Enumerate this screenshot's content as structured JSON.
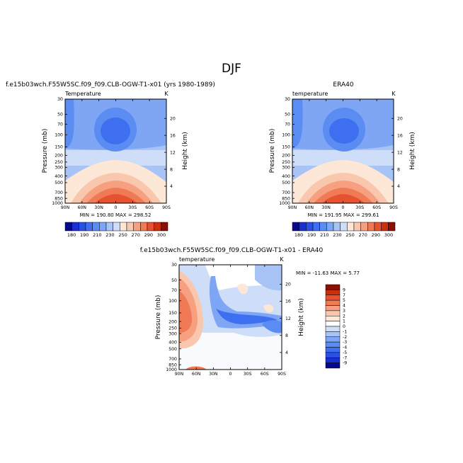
{
  "figure_title": "DJF",
  "chart_data": [
    {
      "type": "heatmap",
      "title": "f.e15b03wch.F55W5SC.f09_f09.CLB-OGW-T1-x01 (yrs 1980-1989)",
      "subtitle": "Temperature",
      "units": "K",
      "ylabel": "Pressure (mb)",
      "ylabel_right": "Height (km)",
      "x_ticks": [
        "90N",
        "60N",
        "30N",
        "0",
        "30S",
        "60S",
        "90S"
      ],
      "y_ticks": [
        "30",
        "50",
        "70",
        "100",
        "150",
        "200",
        "250",
        "300",
        "400",
        "500",
        "700",
        "850",
        "1000"
      ],
      "y_right_ticks": [
        "20",
        "16",
        "12",
        "8",
        "4"
      ],
      "stats": "MIN = 190.80   MAX = 298.52",
      "min": 190.8,
      "max": 298.52,
      "colorbar_labels": [
        "180",
        "190",
        "210",
        "230",
        "250",
        "270",
        "290",
        "300"
      ]
    },
    {
      "type": "heatmap",
      "title": "ERA40",
      "subtitle": "temperature",
      "units": "K",
      "ylabel": "Pressure (mb)",
      "ylabel_right": "Height (km)",
      "x_ticks": [
        "90N",
        "60N",
        "30N",
        "0",
        "30S",
        "60S",
        "90S"
      ],
      "y_ticks": [
        "30",
        "50",
        "70",
        "100",
        "150",
        "200",
        "250",
        "300",
        "400",
        "500",
        "700",
        "850",
        "1000"
      ],
      "y_right_ticks": [
        "20",
        "16",
        "12",
        "8",
        "4"
      ],
      "stats": "MIN = 191.95   MAX = 299.61",
      "min": 191.95,
      "max": 299.61,
      "colorbar_labels": [
        "180",
        "190",
        "210",
        "230",
        "250",
        "270",
        "290",
        "300"
      ]
    },
    {
      "type": "heatmap",
      "title": "f.e15b03wch.F55W5SC.f09_f09.CLB-OGW-T1-x01 - ERA40",
      "subtitle": "temperature",
      "units": "K",
      "ylabel": "Pressure (mb)",
      "ylabel_right": "Height (km)",
      "x_ticks": [
        "90N",
        "60N",
        "30N",
        "0",
        "30S",
        "60S",
        "90S"
      ],
      "y_ticks": [
        "30",
        "50",
        "70",
        "100",
        "150",
        "200",
        "250",
        "300",
        "400",
        "500",
        "700",
        "850",
        "1000"
      ],
      "y_right_ticks": [
        "20",
        "16",
        "12",
        "8",
        "4"
      ],
      "stats": "MIN = -11.63   MAX =    5.77",
      "min": -11.63,
      "max": 5.77,
      "colorbar_labels": [
        "9",
        "7",
        "5",
        "4",
        "3",
        "2",
        "1",
        "0",
        "-1",
        "-2",
        "-3",
        "-4",
        "-5",
        "-7",
        "-9"
      ]
    }
  ],
  "colors": {
    "temp_scale": [
      "#08088e",
      "#1a2fd0",
      "#2a50e8",
      "#3d6ff0",
      "#5a8cf2",
      "#7ea6f4",
      "#a8c4f6",
      "#cfdef8",
      "#fde7d6",
      "#f9c7ad",
      "#f6a080",
      "#f07a55",
      "#e65230",
      "#c8300e",
      "#8a1004"
    ],
    "diff_scale": [
      "#8a1004",
      "#c8300e",
      "#e65230",
      "#f07a55",
      "#f6a080",
      "#f9c7ad",
      "#fde7d6",
      "#ffffff",
      "#cfdef8",
      "#a8c4f6",
      "#7ea6f4",
      "#5a8cf2",
      "#3d6ff0",
      "#2a50e8",
      "#1a2fd0",
      "#08088e"
    ]
  }
}
